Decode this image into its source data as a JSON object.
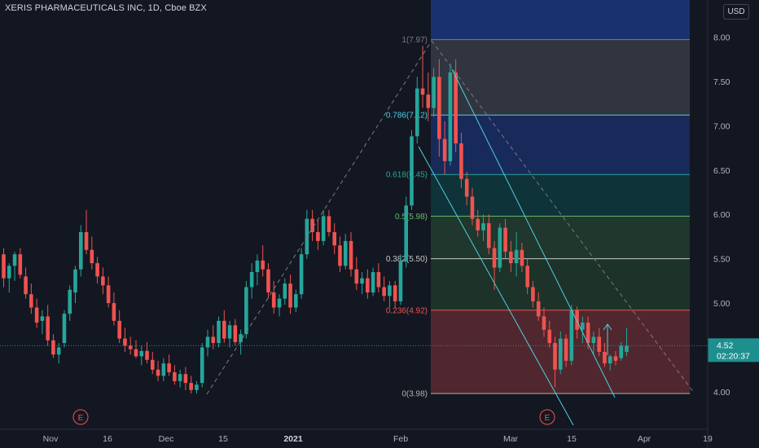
{
  "header": {
    "title": "XERIS PHARMACEUTICALS INC, 1D, Cboe BZX",
    "currency": "USD"
  },
  "price_badge": {
    "price": "4.52",
    "countdown": "02:20:37"
  },
  "events": [
    "E",
    "E"
  ],
  "colors": {
    "background": "#131722",
    "up": "#26a69a",
    "down": "#ef5350",
    "channel": "#4dd0e1",
    "trend": "#787b86",
    "badge": "#1e8f8f"
  },
  "chart_data": {
    "type": "candlestick",
    "yticks": [
      "8.00",
      "7.50",
      "7.00",
      "6.50",
      "6.00",
      "5.50",
      "5.00",
      "4.00"
    ],
    "xticks": [
      "Nov",
      "16",
      "Dec",
      "15",
      "2021",
      "Feb",
      "Mar",
      "15",
      "Apr",
      "19"
    ],
    "ylim": [
      3.7,
      8.25
    ],
    "fib_levels": [
      {
        "label": "1(7.97)",
        "value": 7.97,
        "color": "#787b86"
      },
      {
        "label": "0.786(7.12)",
        "value": 7.12,
        "color": "#4dd0e1"
      },
      {
        "label": "0.618(6.45)",
        "value": 6.45,
        "color": "#26a69a"
      },
      {
        "label": "0.5(5.98)",
        "value": 5.98,
        "color": "#66bb6a"
      },
      {
        "label": "0.382(5.50)",
        "value": 5.5,
        "color": "#c8c8c8"
      },
      {
        "label": "0.236(4.92)",
        "value": 4.92,
        "color": "#ef5350"
      },
      {
        "label": "0(3.98)",
        "value": 3.98,
        "color": "#b0b0b0"
      }
    ],
    "candles": [
      {
        "o": 5.55,
        "h": 5.62,
        "l": 5.18,
        "c": 5.28
      },
      {
        "o": 5.28,
        "h": 5.45,
        "l": 5.12,
        "c": 5.42
      },
      {
        "o": 5.42,
        "h": 5.58,
        "l": 5.25,
        "c": 5.55
      },
      {
        "o": 5.55,
        "h": 5.62,
        "l": 5.28,
        "c": 5.32
      },
      {
        "o": 5.3,
        "h": 5.4,
        "l": 5.05,
        "c": 5.1
      },
      {
        "o": 5.1,
        "h": 5.22,
        "l": 4.88,
        "c": 4.95
      },
      {
        "o": 4.95,
        "h": 5.05,
        "l": 4.72,
        "c": 4.78
      },
      {
        "o": 4.8,
        "h": 4.92,
        "l": 4.65,
        "c": 4.85
      },
      {
        "o": 4.85,
        "h": 4.98,
        "l": 4.52,
        "c": 4.58
      },
      {
        "o": 4.58,
        "h": 4.65,
        "l": 4.38,
        "c": 4.42
      },
      {
        "o": 4.42,
        "h": 4.55,
        "l": 4.32,
        "c": 4.5
      },
      {
        "o": 4.55,
        "h": 4.92,
        "l": 4.5,
        "c": 4.88
      },
      {
        "o": 4.88,
        "h": 5.2,
        "l": 4.8,
        "c": 5.15
      },
      {
        "o": 5.12,
        "h": 5.42,
        "l": 5.0,
        "c": 5.38
      },
      {
        "o": 5.38,
        "h": 5.88,
        "l": 5.3,
        "c": 5.8
      },
      {
        "o": 5.8,
        "h": 6.05,
        "l": 5.55,
        "c": 5.6
      },
      {
        "o": 5.6,
        "h": 5.75,
        "l": 5.38,
        "c": 5.45
      },
      {
        "o": 5.45,
        "h": 5.52,
        "l": 5.22,
        "c": 5.3
      },
      {
        "o": 5.3,
        "h": 5.4,
        "l": 5.1,
        "c": 5.2
      },
      {
        "o": 5.2,
        "h": 5.3,
        "l": 4.95,
        "c": 5.0
      },
      {
        "o": 5.0,
        "h": 5.12,
        "l": 4.75,
        "c": 4.8
      },
      {
        "o": 4.8,
        "h": 4.92,
        "l": 4.55,
        "c": 4.6
      },
      {
        "o": 4.6,
        "h": 4.72,
        "l": 4.45,
        "c": 4.52
      },
      {
        "o": 4.52,
        "h": 4.62,
        "l": 4.42,
        "c": 4.48
      },
      {
        "o": 4.48,
        "h": 4.58,
        "l": 4.38,
        "c": 4.4
      },
      {
        "o": 4.4,
        "h": 4.52,
        "l": 4.3,
        "c": 4.46
      },
      {
        "o": 4.46,
        "h": 4.56,
        "l": 4.32,
        "c": 4.36
      },
      {
        "o": 4.36,
        "h": 4.45,
        "l": 4.2,
        "c": 4.25
      },
      {
        "o": 4.25,
        "h": 4.35,
        "l": 4.12,
        "c": 4.18
      },
      {
        "o": 4.18,
        "h": 4.38,
        "l": 4.12,
        "c": 4.32
      },
      {
        "o": 4.32,
        "h": 4.42,
        "l": 4.18,
        "c": 4.22
      },
      {
        "o": 4.22,
        "h": 4.3,
        "l": 4.08,
        "c": 4.12
      },
      {
        "o": 4.12,
        "h": 4.25,
        "l": 4.05,
        "c": 4.2
      },
      {
        "o": 4.2,
        "h": 4.28,
        "l": 4.02,
        "c": 4.1
      },
      {
        "o": 4.1,
        "h": 4.18,
        "l": 3.98,
        "c": 4.02
      },
      {
        "o": 4.02,
        "h": 4.12,
        "l": 3.98,
        "c": 4.08
      },
      {
        "o": 4.1,
        "h": 4.55,
        "l": 4.05,
        "c": 4.5
      },
      {
        "o": 4.5,
        "h": 4.7,
        "l": 4.4,
        "c": 4.62
      },
      {
        "o": 4.62,
        "h": 4.75,
        "l": 4.48,
        "c": 4.55
      },
      {
        "o": 4.55,
        "h": 4.85,
        "l": 4.5,
        "c": 4.8
      },
      {
        "o": 4.8,
        "h": 4.92,
        "l": 4.55,
        "c": 4.6
      },
      {
        "o": 4.6,
        "h": 4.8,
        "l": 4.5,
        "c": 4.75
      },
      {
        "o": 4.75,
        "h": 4.82,
        "l": 4.52,
        "c": 4.56
      },
      {
        "o": 4.56,
        "h": 4.7,
        "l": 4.42,
        "c": 4.65
      },
      {
        "o": 4.65,
        "h": 5.25,
        "l": 4.6,
        "c": 5.18
      },
      {
        "o": 5.18,
        "h": 5.45,
        "l": 5.05,
        "c": 5.35
      },
      {
        "o": 5.35,
        "h": 5.55,
        "l": 5.2,
        "c": 5.48
      },
      {
        "o": 5.48,
        "h": 5.65,
        "l": 5.3,
        "c": 5.38
      },
      {
        "o": 5.38,
        "h": 5.45,
        "l": 5.05,
        "c": 5.12
      },
      {
        "o": 5.12,
        "h": 5.25,
        "l": 4.88,
        "c": 4.95
      },
      {
        "o": 4.95,
        "h": 5.1,
        "l": 4.85,
        "c": 5.05
      },
      {
        "o": 5.05,
        "h": 5.28,
        "l": 4.98,
        "c": 5.22
      },
      {
        "o": 5.22,
        "h": 5.32,
        "l": 4.88,
        "c": 4.95
      },
      {
        "o": 4.95,
        "h": 5.15,
        "l": 4.9,
        "c": 5.1
      },
      {
        "o": 5.1,
        "h": 5.62,
        "l": 5.05,
        "c": 5.55
      },
      {
        "o": 5.55,
        "h": 6.05,
        "l": 5.5,
        "c": 5.95
      },
      {
        "o": 5.95,
        "h": 6.05,
        "l": 5.7,
        "c": 5.8
      },
      {
        "o": 5.8,
        "h": 5.95,
        "l": 5.6,
        "c": 5.7
      },
      {
        "o": 5.7,
        "h": 6.05,
        "l": 5.65,
        "c": 5.98
      },
      {
        "o": 5.98,
        "h": 6.05,
        "l": 5.75,
        "c": 5.8
      },
      {
        "o": 5.8,
        "h": 5.9,
        "l": 5.55,
        "c": 5.65
      },
      {
        "o": 5.65,
        "h": 5.75,
        "l": 5.35,
        "c": 5.42
      },
      {
        "o": 5.42,
        "h": 5.78,
        "l": 5.38,
        "c": 5.7
      },
      {
        "o": 5.7,
        "h": 5.8,
        "l": 5.3,
        "c": 5.38
      },
      {
        "o": 5.38,
        "h": 5.52,
        "l": 5.15,
        "c": 5.22
      },
      {
        "o": 5.22,
        "h": 5.35,
        "l": 5.1,
        "c": 5.28
      },
      {
        "o": 5.28,
        "h": 5.38,
        "l": 5.05,
        "c": 5.12
      },
      {
        "o": 5.12,
        "h": 5.4,
        "l": 5.08,
        "c": 5.35
      },
      {
        "o": 5.35,
        "h": 5.45,
        "l": 5.12,
        "c": 5.18
      },
      {
        "o": 5.18,
        "h": 5.3,
        "l": 5.02,
        "c": 5.08
      },
      {
        "o": 5.08,
        "h": 5.25,
        "l": 4.95,
        "c": 5.2
      },
      {
        "o": 5.2,
        "h": 5.25,
        "l": 4.95,
        "c": 5.02
      },
      {
        "o": 5.02,
        "h": 5.55,
        "l": 4.98,
        "c": 5.48
      },
      {
        "o": 5.48,
        "h": 6.2,
        "l": 5.4,
        "c": 6.1
      },
      {
        "o": 6.1,
        "h": 6.95,
        "l": 6.05,
        "c": 6.88
      },
      {
        "o": 6.88,
        "h": 7.55,
        "l": 6.8,
        "c": 7.42
      },
      {
        "o": 7.42,
        "h": 7.9,
        "l": 7.2,
        "c": 7.35
      },
      {
        "o": 7.35,
        "h": 7.6,
        "l": 7.05,
        "c": 7.2
      },
      {
        "o": 7.2,
        "h": 7.65,
        "l": 7.1,
        "c": 7.55
      },
      {
        "o": 7.55,
        "h": 7.75,
        "l": 6.65,
        "c": 6.85
      },
      {
        "o": 6.85,
        "h": 7.05,
        "l": 6.45,
        "c": 6.6
      },
      {
        "o": 6.6,
        "h": 7.7,
        "l": 6.55,
        "c": 7.6
      },
      {
        "o": 7.6,
        "h": 7.75,
        "l": 6.7,
        "c": 6.8
      },
      {
        "o": 6.8,
        "h": 6.92,
        "l": 6.3,
        "c": 6.4
      },
      {
        "o": 6.4,
        "h": 6.48,
        "l": 6.1,
        "c": 6.2
      },
      {
        "o": 6.2,
        "h": 6.3,
        "l": 5.88,
        "c": 5.95
      },
      {
        "o": 5.95,
        "h": 6.05,
        "l": 5.75,
        "c": 5.82
      },
      {
        "o": 5.82,
        "h": 6.0,
        "l": 5.7,
        "c": 5.9
      },
      {
        "o": 5.9,
        "h": 6.0,
        "l": 5.55,
        "c": 5.62
      },
      {
        "o": 5.62,
        "h": 5.7,
        "l": 5.15,
        "c": 5.4
      },
      {
        "o": 5.4,
        "h": 5.9,
        "l": 5.35,
        "c": 5.85
      },
      {
        "o": 5.85,
        "h": 5.95,
        "l": 5.5,
        "c": 5.58
      },
      {
        "o": 5.58,
        "h": 5.7,
        "l": 5.35,
        "c": 5.45
      },
      {
        "o": 5.45,
        "h": 5.8,
        "l": 5.3,
        "c": 5.6
      },
      {
        "o": 5.6,
        "h": 5.68,
        "l": 5.35,
        "c": 5.42
      },
      {
        "o": 5.42,
        "h": 5.5,
        "l": 5.1,
        "c": 5.18
      },
      {
        "o": 5.18,
        "h": 5.25,
        "l": 4.95,
        "c": 5.02
      },
      {
        "o": 5.02,
        "h": 5.12,
        "l": 4.8,
        "c": 4.85
      },
      {
        "o": 4.85,
        "h": 4.95,
        "l": 4.62,
        "c": 4.7
      },
      {
        "o": 4.7,
        "h": 4.8,
        "l": 4.5,
        "c": 4.55
      },
      {
        "o": 4.55,
        "h": 4.62,
        "l": 4.05,
        "c": 4.25
      },
      {
        "o": 4.25,
        "h": 4.68,
        "l": 4.2,
        "c": 4.6
      },
      {
        "o": 4.6,
        "h": 4.65,
        "l": 4.28,
        "c": 4.35
      },
      {
        "o": 4.35,
        "h": 4.98,
        "l": 4.3,
        "c": 4.92
      },
      {
        "o": 4.92,
        "h": 4.96,
        "l": 4.6,
        "c": 4.7
      },
      {
        "o": 4.7,
        "h": 4.85,
        "l": 4.55,
        "c": 4.78
      },
      {
        "o": 4.78,
        "h": 4.85,
        "l": 4.48,
        "c": 4.55
      },
      {
        "o": 4.55,
        "h": 4.68,
        "l": 4.42,
        "c": 4.62
      },
      {
        "o": 4.62,
        "h": 4.72,
        "l": 4.4,
        "c": 4.45
      },
      {
        "o": 4.45,
        "h": 4.55,
        "l": 4.28,
        "c": 4.32
      },
      {
        "o": 4.32,
        "h": 4.42,
        "l": 4.24,
        "c": 4.4
      },
      {
        "o": 4.4,
        "h": 4.46,
        "l": 4.3,
        "c": 4.35
      },
      {
        "o": 4.38,
        "h": 4.56,
        "l": 4.35,
        "c": 4.52
      },
      {
        "o": 4.45,
        "h": 4.72,
        "l": 4.4,
        "c": 4.52
      }
    ]
  }
}
